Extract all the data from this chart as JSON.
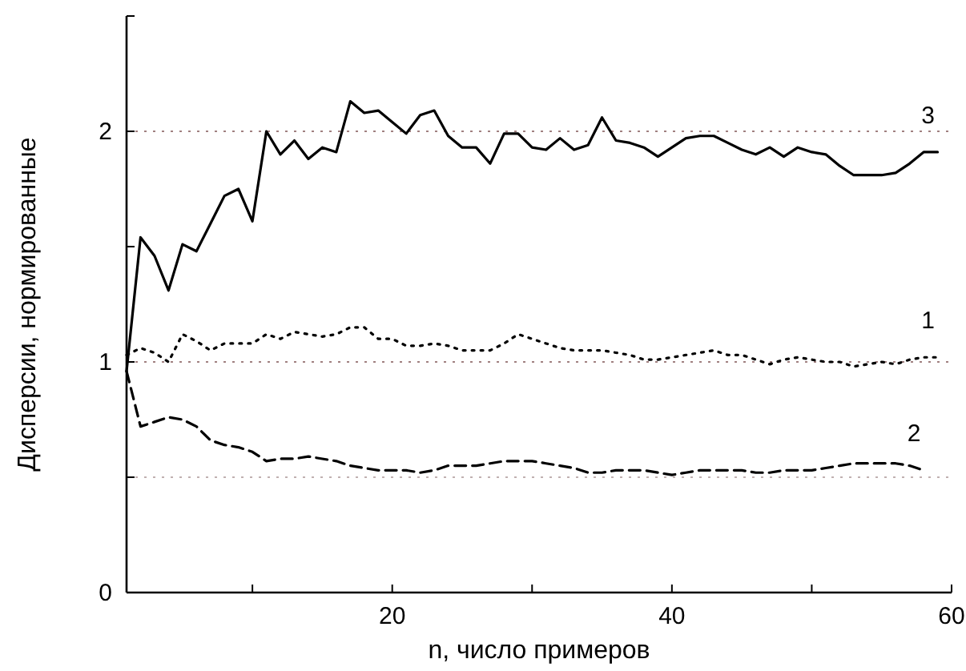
{
  "chart_data": {
    "type": "line",
    "xlabel": "n, число примеров",
    "ylabel": "Дисперсии, нормированные",
    "xlim": [
      1,
      60
    ],
    "ylim": [
      0,
      2.5
    ],
    "xticks": [
      {
        "value": 10,
        "label": null
      },
      20,
      {
        "value": 30,
        "label": null
      },
      40,
      {
        "value": 50,
        "label": null
      },
      60
    ],
    "yticks": [
      0,
      {
        "value": 0.5,
        "label": null
      },
      1,
      {
        "value": 1.5,
        "label": null
      },
      2,
      {
        "value": 2.5,
        "label": null
      }
    ],
    "grid": false,
    "marker": "none",
    "ref_lines": [
      {
        "axis": "y",
        "value": 2,
        "color": "#a08080",
        "line_style": "dotted"
      },
      {
        "axis": "y",
        "value": 1,
        "color": "#a08080",
        "line_style": "dotted"
      },
      {
        "axis": "y",
        "value": 0.5,
        "color": "#c0b0b0",
        "line_style": "dotted"
      }
    ],
    "series": [
      {
        "name": "3",
        "color": "#000000",
        "line_style": "solid",
        "x": [
          1,
          2,
          3,
          4,
          5,
          6,
          7,
          8,
          9,
          10,
          11,
          12,
          13,
          14,
          15,
          16,
          17,
          18,
          19,
          20,
          21,
          22,
          23,
          24,
          25,
          26,
          27,
          28,
          29,
          30,
          31,
          32,
          33,
          34,
          35,
          36,
          37,
          38,
          39,
          40,
          41,
          42,
          43,
          44,
          45,
          46,
          47,
          48,
          49,
          50,
          51,
          52,
          53,
          54,
          55,
          56,
          57,
          58,
          59
        ],
        "values": [
          0.96,
          1.54,
          1.46,
          1.31,
          1.51,
          1.48,
          1.6,
          1.72,
          1.75,
          1.61,
          2.0,
          1.9,
          1.96,
          1.88,
          1.93,
          1.91,
          2.13,
          2.08,
          2.09,
          2.04,
          1.99,
          2.07,
          2.09,
          1.98,
          1.93,
          1.93,
          1.86,
          1.99,
          1.99,
          1.93,
          1.92,
          1.97,
          1.92,
          1.94,
          2.06,
          1.96,
          1.95,
          1.93,
          1.89,
          1.93,
          1.97,
          1.98,
          1.98,
          1.95,
          1.92,
          1.9,
          1.93,
          1.89,
          1.93,
          1.91,
          1.9,
          1.85,
          1.81,
          1.81,
          1.81,
          1.82,
          1.86,
          1.91,
          1.91
        ]
      },
      {
        "name": "1",
        "color": "#000000",
        "line_style": "dotted",
        "x": [
          1,
          2,
          3,
          4,
          5,
          6,
          7,
          8,
          9,
          10,
          11,
          12,
          13,
          14,
          15,
          16,
          17,
          18,
          19,
          20,
          21,
          22,
          23,
          24,
          25,
          26,
          27,
          28,
          29,
          30,
          31,
          32,
          33,
          34,
          35,
          36,
          37,
          38,
          39,
          40,
          41,
          42,
          43,
          44,
          45,
          46,
          47,
          48,
          49,
          50,
          51,
          52,
          53,
          54,
          55,
          56,
          57,
          58,
          59
        ],
        "values": [
          1.03,
          1.06,
          1.04,
          1.0,
          1.12,
          1.09,
          1.05,
          1.08,
          1.08,
          1.08,
          1.12,
          1.1,
          1.13,
          1.12,
          1.11,
          1.12,
          1.15,
          1.15,
          1.1,
          1.1,
          1.07,
          1.07,
          1.08,
          1.07,
          1.05,
          1.05,
          1.05,
          1.08,
          1.12,
          1.1,
          1.08,
          1.06,
          1.05,
          1.05,
          1.05,
          1.04,
          1.03,
          1.01,
          1.01,
          1.02,
          1.03,
          1.04,
          1.05,
          1.03,
          1.03,
          1.01,
          0.99,
          1.01,
          1.02,
          1.01,
          1.0,
          1.0,
          0.98,
          0.99,
          1.0,
          0.99,
          1.01,
          1.02,
          1.02
        ]
      },
      {
        "name": "2",
        "color": "#000000",
        "line_style": "dashed",
        "x": [
          1,
          2,
          3,
          4,
          5,
          6,
          7,
          8,
          9,
          10,
          11,
          12,
          13,
          14,
          15,
          16,
          17,
          18,
          19,
          20,
          21,
          22,
          23,
          24,
          25,
          26,
          27,
          28,
          29,
          30,
          31,
          32,
          33,
          34,
          35,
          36,
          37,
          38,
          39,
          40,
          41,
          42,
          43,
          44,
          45,
          46,
          47,
          48,
          49,
          50,
          51,
          52,
          53,
          54,
          55,
          56,
          57,
          58
        ],
        "values": [
          0.96,
          0.72,
          0.74,
          0.76,
          0.75,
          0.72,
          0.66,
          0.64,
          0.63,
          0.61,
          0.57,
          0.58,
          0.58,
          0.59,
          0.58,
          0.57,
          0.55,
          0.54,
          0.53,
          0.53,
          0.53,
          0.52,
          0.53,
          0.55,
          0.55,
          0.55,
          0.56,
          0.57,
          0.57,
          0.57,
          0.56,
          0.55,
          0.54,
          0.52,
          0.52,
          0.53,
          0.53,
          0.53,
          0.52,
          0.51,
          0.52,
          0.53,
          0.53,
          0.53,
          0.53,
          0.52,
          0.52,
          0.53,
          0.53,
          0.53,
          0.54,
          0.55,
          0.56,
          0.56,
          0.56,
          0.56,
          0.55,
          0.53
        ]
      }
    ]
  }
}
